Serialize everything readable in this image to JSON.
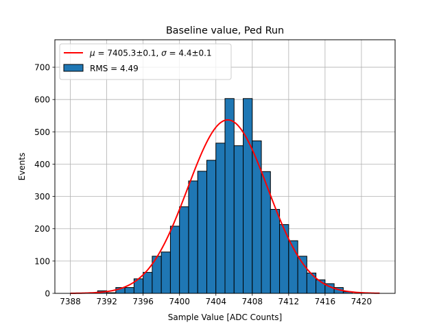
{
  "chart_data": {
    "type": "bar",
    "title": "Baseline value, Ped Run",
    "xlabel": "Sample Value [ADC Counts]",
    "ylabel": "Events",
    "xlim": [
      7386.3,
      7423.7
    ],
    "ylim": [
      0,
      785
    ],
    "xticks": [
      7388,
      7392,
      7396,
      7400,
      7404,
      7408,
      7412,
      7416,
      7420
    ],
    "yticks": [
      0,
      100,
      200,
      300,
      400,
      500,
      600,
      700
    ],
    "grid": true,
    "legend_position": "top-left",
    "bin_width": 1,
    "series": [
      {
        "name": "RMS = 4.49",
        "type": "histogram",
        "color": "#1f77b4",
        "bin_edges": [
          7391,
          7392,
          7393,
          7394,
          7395,
          7396,
          7397,
          7398,
          7399,
          7400,
          7401,
          7402,
          7403,
          7404,
          7405,
          7406,
          7407,
          7408,
          7409,
          7410,
          7411,
          7412,
          7413,
          7414,
          7415,
          7416,
          7417,
          7418,
          7419
        ],
        "values": [
          8,
          2,
          18,
          18,
          45,
          65,
          115,
          128,
          208,
          268,
          348,
          378,
          412,
          465,
          603,
          457,
          603,
          472,
          377,
          260,
          213,
          163,
          115,
          63,
          42,
          30,
          18,
          5
        ]
      },
      {
        "name": "$\\mu = 7405.3\\pm0.1$, $\\sigma = 4.4\\pm0.1$",
        "type": "gaussian_fit",
        "color": "#ff0000",
        "mu": 7405.3,
        "sigma": 4.4,
        "amplitude": 537,
        "x_range": [
          7388,
          7422
        ]
      }
    ],
    "legend": {
      "fit_label_parts": {
        "mu_symbol": "μ",
        "mu_text": " = 7405.3±0.1, ",
        "sigma_symbol": "σ",
        "sigma_text": " = 4.4±0.1"
      },
      "hist_label": "RMS = 4.49"
    }
  }
}
